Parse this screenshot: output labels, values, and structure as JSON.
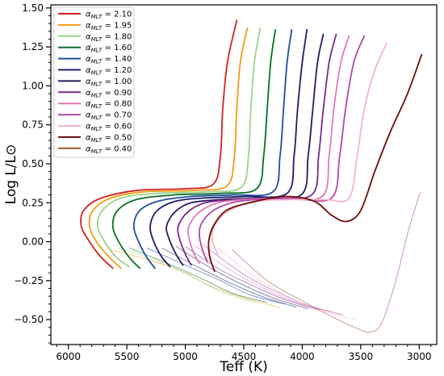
{
  "chart_data": {
    "type": "line",
    "title": "",
    "xlabel": "Teff (K)",
    "ylabel": "Log L/L⊙",
    "xlim": [
      6150,
      2850
    ],
    "ylim": [
      -0.66,
      1.52
    ],
    "x_inverted": true,
    "grid": false,
    "legend_position": "top-left",
    "xticks": [
      6000,
      5500,
      5000,
      4500,
      4000,
      3500,
      3000
    ],
    "xtick_labels": [
      "6000",
      "5500",
      "5000",
      "4500",
      "4000",
      "3500",
      "3000"
    ],
    "yticks": [
      -0.5,
      -0.25,
      0.0,
      0.25,
      0.5,
      0.75,
      1.0,
      1.25,
      1.5
    ],
    "ytick_labels": [
      "−0.50",
      "−0.25",
      "0.00",
      "0.25",
      "0.50",
      "0.75",
      "1.00",
      "1.25",
      "1.50"
    ],
    "legend_symbol": "α",
    "legend_subscript": "MLT",
    "series": [
      {
        "name": "2.10",
        "color": "#d62020",
        "bright": [
          [
            5620,
            -0.17
          ],
          [
            5720,
            -0.1
          ],
          [
            5820,
            0.0
          ],
          [
            5890,
            0.1
          ],
          [
            5870,
            0.2
          ],
          [
            5720,
            0.28
          ],
          [
            5400,
            0.33
          ],
          [
            5000,
            0.34
          ],
          [
            4760,
            0.37
          ],
          [
            4700,
            0.55
          ],
          [
            4680,
            0.85
          ],
          [
            4640,
            1.15
          ],
          [
            4560,
            1.42
          ]
        ],
        "faint": []
      },
      {
        "name": "1.95",
        "color": "#f39c12",
        "bright": [
          [
            5550,
            -0.17
          ],
          [
            5650,
            -0.1
          ],
          [
            5760,
            0.0
          ],
          [
            5820,
            0.1
          ],
          [
            5790,
            0.2
          ],
          [
            5640,
            0.28
          ],
          [
            5350,
            0.32
          ],
          [
            4900,
            0.33
          ],
          [
            4640,
            0.36
          ],
          [
            4580,
            0.55
          ],
          [
            4560,
            0.85
          ],
          [
            4530,
            1.15
          ],
          [
            4470,
            1.37
          ]
        ],
        "faint": [
          [
            5650,
            -0.05
          ],
          [
            5300,
            -0.12
          ],
          [
            5000,
            -0.2
          ],
          [
            4800,
            -0.28
          ],
          [
            4500,
            -0.36
          ],
          [
            4200,
            -0.42
          ]
        ]
      },
      {
        "name": "1.80",
        "color": "#9bd38a",
        "bright": [
          [
            5480,
            -0.16
          ],
          [
            5590,
            -0.1
          ],
          [
            5690,
            0.0
          ],
          [
            5750,
            0.1
          ],
          [
            5710,
            0.2
          ],
          [
            5550,
            0.28
          ],
          [
            5250,
            0.31
          ],
          [
            4800,
            0.32
          ],
          [
            4520,
            0.35
          ],
          [
            4460,
            0.55
          ],
          [
            4440,
            0.85
          ],
          [
            4410,
            1.15
          ],
          [
            4360,
            1.37
          ]
        ],
        "faint": [
          [
            5580,
            -0.04
          ],
          [
            5250,
            -0.12
          ],
          [
            4950,
            -0.22
          ],
          [
            4700,
            -0.32
          ],
          [
            4400,
            -0.39
          ]
        ]
      },
      {
        "name": "1.60",
        "color": "#0a6e2c",
        "bright": [
          [
            5390,
            -0.17
          ],
          [
            5480,
            -0.1
          ],
          [
            5570,
            0.0
          ],
          [
            5620,
            0.1
          ],
          [
            5580,
            0.2
          ],
          [
            5420,
            0.27
          ],
          [
            5100,
            0.3
          ],
          [
            4700,
            0.31
          ],
          [
            4390,
            0.34
          ],
          [
            4330,
            0.55
          ],
          [
            4300,
            0.85
          ],
          [
            4270,
            1.15
          ],
          [
            4230,
            1.36
          ]
        ],
        "faint": [
          [
            5480,
            -0.04
          ],
          [
            5150,
            -0.14
          ],
          [
            4850,
            -0.24
          ],
          [
            4600,
            -0.33
          ],
          [
            4300,
            -0.39
          ]
        ]
      },
      {
        "name": "1.40",
        "color": "#1f4e9e",
        "bright": [
          [
            5260,
            -0.17
          ],
          [
            5330,
            -0.1
          ],
          [
            5400,
            0.0
          ],
          [
            5440,
            0.1
          ],
          [
            5390,
            0.2
          ],
          [
            5230,
            0.26
          ],
          [
            4950,
            0.29
          ],
          [
            4600,
            0.3
          ],
          [
            4250,
            0.32
          ],
          [
            4190,
            0.55
          ],
          [
            4160,
            0.85
          ],
          [
            4130,
            1.15
          ],
          [
            4090,
            1.36
          ]
        ],
        "faint": [
          [
            5330,
            -0.04
          ],
          [
            5000,
            -0.15
          ],
          [
            4700,
            -0.25
          ],
          [
            4450,
            -0.34
          ],
          [
            4150,
            -0.4
          ]
        ]
      },
      {
        "name": "1.20",
        "color": "#1c1c6e",
        "bright": [
          [
            5130,
            -0.16
          ],
          [
            5200,
            -0.1
          ],
          [
            5270,
            0.0
          ],
          [
            5300,
            0.1
          ],
          [
            5240,
            0.2
          ],
          [
            5080,
            0.26
          ],
          [
            4850,
            0.28
          ],
          [
            4500,
            0.29
          ],
          [
            4130,
            0.31
          ],
          [
            4070,
            0.55
          ],
          [
            4040,
            0.85
          ],
          [
            4000,
            1.15
          ],
          [
            3960,
            1.36
          ]
        ],
        "faint": [
          [
            5200,
            -0.04
          ],
          [
            4900,
            -0.16
          ],
          [
            4600,
            -0.27
          ],
          [
            4350,
            -0.35
          ],
          [
            4050,
            -0.42
          ]
        ]
      },
      {
        "name": "1.00",
        "color": "#2a1a5e",
        "bright": [
          [
            5020,
            -0.15
          ],
          [
            5080,
            -0.08
          ],
          [
            5140,
            0.02
          ],
          [
            5160,
            0.1
          ],
          [
            5090,
            0.19
          ],
          [
            4950,
            0.25
          ],
          [
            4700,
            0.27
          ],
          [
            4400,
            0.28
          ],
          [
            4010,
            0.3
          ],
          [
            3950,
            0.55
          ],
          [
            3910,
            0.85
          ],
          [
            3870,
            1.15
          ],
          [
            3820,
            1.33
          ]
        ],
        "faint": [
          [
            5080,
            -0.03
          ],
          [
            4780,
            -0.17
          ],
          [
            4500,
            -0.28
          ],
          [
            4250,
            -0.36
          ],
          [
            3950,
            -0.43
          ]
        ]
      },
      {
        "name": "0.90",
        "color": "#7a2a8a",
        "bright": [
          [
            4950,
            -0.15
          ],
          [
            5000,
            -0.08
          ],
          [
            5050,
            0.02
          ],
          [
            5060,
            0.1
          ],
          [
            4980,
            0.19
          ],
          [
            4830,
            0.25
          ],
          [
            4600,
            0.27
          ],
          [
            4300,
            0.28
          ],
          [
            3920,
            0.3
          ],
          [
            3860,
            0.55
          ],
          [
            3820,
            0.85
          ],
          [
            3770,
            1.15
          ],
          [
            3710,
            1.33
          ]
        ],
        "faint": [
          [
            5000,
            -0.03
          ],
          [
            4700,
            -0.18
          ],
          [
            4400,
            -0.29
          ],
          [
            4150,
            -0.37
          ],
          [
            3850,
            -0.44
          ]
        ]
      },
      {
        "name": "0.80",
        "color": "#e07ab8",
        "bright": [
          [
            4880,
            -0.14
          ],
          [
            4930,
            -0.07
          ],
          [
            4970,
            0.03
          ],
          [
            4970,
            0.1
          ],
          [
            4880,
            0.19
          ],
          [
            4720,
            0.25
          ],
          [
            4500,
            0.27
          ],
          [
            4200,
            0.28
          ],
          [
            3830,
            0.29
          ],
          [
            3770,
            0.55
          ],
          [
            3730,
            0.85
          ],
          [
            3670,
            1.15
          ],
          [
            3600,
            1.32
          ]
        ],
        "faint": [
          [
            4930,
            -0.02
          ],
          [
            4600,
            -0.19
          ],
          [
            4300,
            -0.31
          ],
          [
            4050,
            -0.39
          ],
          [
            3750,
            -0.45
          ]
        ]
      },
      {
        "name": "0.70",
        "color": "#b04aa8",
        "bright": [
          [
            4810,
            -0.13
          ],
          [
            4850,
            -0.06
          ],
          [
            4880,
            0.04
          ],
          [
            4860,
            0.12
          ],
          [
            4760,
            0.2
          ],
          [
            4600,
            0.25
          ],
          [
            4400,
            0.27
          ],
          [
            4100,
            0.28
          ],
          [
            3750,
            0.28
          ],
          [
            3680,
            0.55
          ],
          [
            3630,
            0.85
          ],
          [
            3560,
            1.15
          ],
          [
            3470,
            1.32
          ]
        ],
        "faint": [
          [
            4850,
            -0.02
          ],
          [
            4500,
            -0.21
          ],
          [
            4200,
            -0.33
          ],
          [
            3950,
            -0.41
          ],
          [
            3650,
            -0.47
          ]
        ]
      },
      {
        "name": "0.60",
        "color": "#f5b5c8",
        "bright": [
          [
            4720,
            -0.08
          ],
          [
            4760,
            -0.02
          ],
          [
            4770,
            0.06
          ],
          [
            4720,
            0.14
          ],
          [
            4600,
            0.21
          ],
          [
            4400,
            0.26
          ],
          [
            4100,
            0.27
          ],
          [
            3800,
            0.27
          ],
          [
            3600,
            0.28
          ],
          [
            3530,
            0.55
          ],
          [
            3470,
            0.85
          ],
          [
            3380,
            1.1
          ],
          [
            3280,
            1.27
          ]
        ],
        "faint": [
          [
            4760,
            -0.02
          ],
          [
            4400,
            -0.23
          ],
          [
            4100,
            -0.36
          ],
          [
            3850,
            -0.44
          ],
          [
            3550,
            -0.5
          ]
        ]
      },
      {
        "name": "0.50",
        "color": "#6e0a0a",
        "bright": [
          [
            4750,
            -0.19
          ],
          [
            4790,
            -0.1
          ],
          [
            4800,
            0.0
          ],
          [
            4760,
            0.1
          ],
          [
            4650,
            0.2
          ],
          [
            4450,
            0.25
          ],
          [
            4150,
            0.29
          ],
          [
            3900,
            0.26
          ],
          [
            3750,
            0.17
          ],
          [
            3620,
            0.13
          ],
          [
            3500,
            0.2
          ],
          [
            3380,
            0.45
          ],
          [
            3250,
            0.7
          ],
          [
            3100,
            0.95
          ],
          [
            2980,
            1.2
          ]
        ],
        "faint": []
      },
      {
        "name": "0.40",
        "color": "#a0522d",
        "bright": [],
        "faint": [
          [
            4600,
            -0.05
          ],
          [
            4300,
            -0.25
          ],
          [
            4000,
            -0.38
          ],
          [
            3750,
            -0.48
          ],
          [
            3550,
            -0.55
          ],
          [
            3420,
            -0.58
          ],
          [
            3320,
            -0.52
          ],
          [
            3200,
            -0.25
          ],
          [
            3100,
            0.05
          ],
          [
            3020,
            0.25
          ],
          [
            2990,
            0.32
          ]
        ]
      }
    ]
  }
}
